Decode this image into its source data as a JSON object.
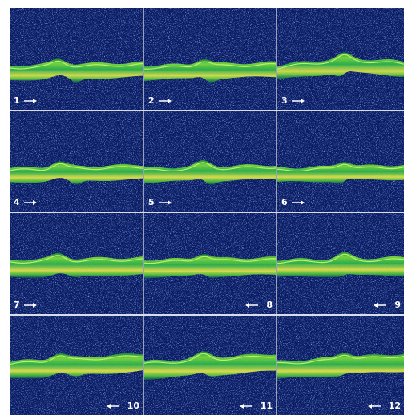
{
  "panels": [
    {
      "label": "1"
    },
    {
      "label": "2"
    },
    {
      "label": "3"
    },
    {
      "label": "4"
    },
    {
      "label": "5"
    },
    {
      "label": "6"
    },
    {
      "label": "7"
    },
    {
      "label": "8"
    },
    {
      "label": "9"
    },
    {
      "label": "10"
    },
    {
      "label": "11"
    },
    {
      "label": "12"
    }
  ]
}
